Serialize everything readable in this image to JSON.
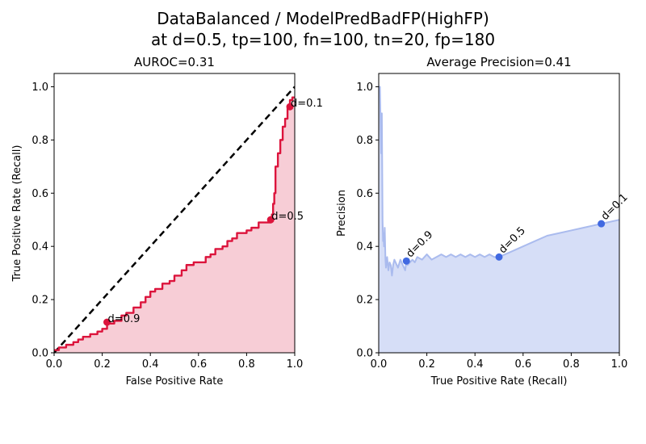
{
  "suptitle": {
    "line1": "DataBalanced / ModelPredBadFP(HighFP)",
    "line2": "at d=0.5, tp=100, fn=100, tn=20, fp=180"
  },
  "colors": {
    "roc_line": "#dc143c",
    "roc_fill": "#f7cdd6",
    "pr_line": "#aabbee",
    "pr_fill": "#d6def7",
    "pr_point": "#4169e1",
    "diagonal": "#000000"
  },
  "chart_data": [
    {
      "type": "area",
      "title": "AUROC=0.31",
      "xlabel": "False Positive Rate",
      "ylabel": "True Positive Rate (Recall)",
      "xlim": [
        0,
        1
      ],
      "ylim": [
        0,
        1.05
      ],
      "xticks": [
        "0.0",
        "0.2",
        "0.4",
        "0.6",
        "0.8",
        "1.0"
      ],
      "yticks": [
        "0.0",
        "0.2",
        "0.4",
        "0.6",
        "0.8",
        "1.0"
      ],
      "grid": false,
      "diagonal": [
        [
          0,
          0
        ],
        [
          1,
          1
        ]
      ],
      "series": [
        {
          "x": [
            0,
            0.02,
            0.02,
            0.05,
            0.05,
            0.08,
            0.08,
            0.1,
            0.1,
            0.12,
            0.12,
            0.15,
            0.15,
            0.18,
            0.18,
            0.2,
            0.2,
            0.22,
            0.22,
            0.25,
            0.25,
            0.28,
            0.28,
            0.3,
            0.3,
            0.33,
            0.33,
            0.36,
            0.36,
            0.38,
            0.38,
            0.4,
            0.4,
            0.42,
            0.42,
            0.45,
            0.45,
            0.48,
            0.48,
            0.5,
            0.5,
            0.53,
            0.53,
            0.55,
            0.55,
            0.58,
            0.58,
            0.63,
            0.63,
            0.65,
            0.65,
            0.67,
            0.67,
            0.7,
            0.7,
            0.72,
            0.72,
            0.74,
            0.74,
            0.76,
            0.76,
            0.8,
            0.8,
            0.82,
            0.82,
            0.85,
            0.85,
            0.9,
            0.9,
            0.905,
            0.905,
            0.91,
            0.91,
            0.915,
            0.915,
            0.92,
            0.92,
            0.93,
            0.93,
            0.94,
            0.94,
            0.95,
            0.95,
            0.96,
            0.96,
            0.97,
            0.97,
            0.98,
            0.98,
            0.99,
            0.99,
            1.0
          ],
          "y": [
            0.01,
            0.01,
            0.02,
            0.02,
            0.03,
            0.03,
            0.04,
            0.04,
            0.05,
            0.05,
            0.06,
            0.06,
            0.07,
            0.07,
            0.08,
            0.08,
            0.09,
            0.09,
            0.11,
            0.11,
            0.12,
            0.12,
            0.14,
            0.14,
            0.15,
            0.15,
            0.17,
            0.17,
            0.19,
            0.19,
            0.21,
            0.21,
            0.23,
            0.23,
            0.24,
            0.24,
            0.26,
            0.26,
            0.27,
            0.27,
            0.29,
            0.29,
            0.31,
            0.31,
            0.33,
            0.33,
            0.34,
            0.34,
            0.36,
            0.36,
            0.37,
            0.37,
            0.39,
            0.39,
            0.4,
            0.4,
            0.42,
            0.42,
            0.43,
            0.43,
            0.45,
            0.45,
            0.46,
            0.46,
            0.47,
            0.47,
            0.49,
            0.49,
            0.5,
            0.5,
            0.52,
            0.52,
            0.56,
            0.56,
            0.6,
            0.6,
            0.7,
            0.7,
            0.75,
            0.75,
            0.8,
            0.8,
            0.85,
            0.85,
            0.88,
            0.88,
            0.92,
            0.92,
            0.95,
            0.95,
            0.96,
            0.96
          ]
        }
      ],
      "points": [
        {
          "label": "d=0.9",
          "x": 0.22,
          "y": 0.115
        },
        {
          "label": "d=0.5",
          "x": 0.9,
          "y": 0.5
        },
        {
          "label": "d=0.1",
          "x": 0.98,
          "y": 0.925
        }
      ]
    },
    {
      "type": "area",
      "title": "Average Precision=0.41",
      "xlabel": "True Positive Rate (Recall)",
      "ylabel": "Precision",
      "xlim": [
        0,
        1
      ],
      "ylim": [
        0,
        1.05
      ],
      "xticks": [
        "0.0",
        "0.2",
        "0.4",
        "0.6",
        "0.8",
        "1.0"
      ],
      "yticks": [
        "0.0",
        "0.2",
        "0.4",
        "0.6",
        "0.8",
        "1.0"
      ],
      "grid": false,
      "series": [
        {
          "x": [
            0,
            0.005,
            0.01,
            0.013,
            0.016,
            0.018,
            0.02,
            0.022,
            0.025,
            0.028,
            0.03,
            0.035,
            0.04,
            0.045,
            0.05,
            0.055,
            0.06,
            0.065,
            0.07,
            0.08,
            0.09,
            0.1,
            0.11,
            0.115,
            0.12,
            0.13,
            0.14,
            0.15,
            0.16,
            0.18,
            0.2,
            0.22,
            0.24,
            0.26,
            0.28,
            0.3,
            0.32,
            0.34,
            0.36,
            0.38,
            0.4,
            0.42,
            0.44,
            0.46,
            0.48,
            0.5,
            0.55,
            0.6,
            0.65,
            0.7,
            0.75,
            0.8,
            0.85,
            0.9,
            0.925,
            0.95,
            1.0
          ],
          "y": [
            1.0,
            1.0,
            0.75,
            0.9,
            0.5,
            0.42,
            0.45,
            0.4,
            0.47,
            0.35,
            0.32,
            0.36,
            0.31,
            0.34,
            0.33,
            0.29,
            0.33,
            0.35,
            0.34,
            0.32,
            0.35,
            0.33,
            0.31,
            0.345,
            0.33,
            0.34,
            0.35,
            0.34,
            0.36,
            0.35,
            0.37,
            0.35,
            0.36,
            0.37,
            0.36,
            0.37,
            0.36,
            0.37,
            0.36,
            0.37,
            0.36,
            0.37,
            0.36,
            0.37,
            0.36,
            0.36,
            0.38,
            0.4,
            0.42,
            0.44,
            0.45,
            0.46,
            0.47,
            0.48,
            0.485,
            0.49,
            0.5
          ]
        }
      ],
      "points": [
        {
          "label": "d=0.9",
          "x": 0.115,
          "y": 0.345
        },
        {
          "label": "d=0.5",
          "x": 0.5,
          "y": 0.36
        },
        {
          "label": "d=0.1",
          "x": 0.925,
          "y": 0.485
        }
      ]
    }
  ]
}
